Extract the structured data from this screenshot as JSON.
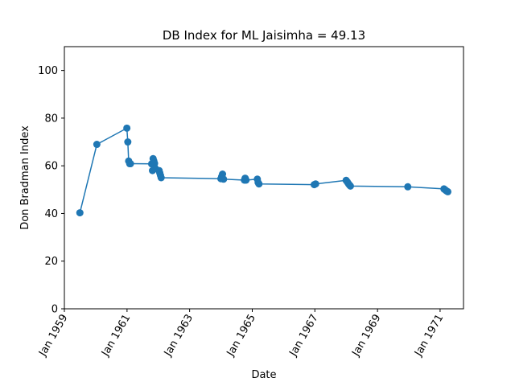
{
  "chart_data": {
    "type": "line",
    "title": "DB Index for ML Jaisimha = 49.13",
    "xlabel": "Date",
    "ylabel": "Don Bradman Index",
    "ylim": [
      0,
      110
    ],
    "xlim": [
      "1959-01-01",
      "1971-10-01"
    ],
    "yticks": [
      0,
      20,
      40,
      60,
      80,
      100
    ],
    "xticks": [
      "Jan 1959",
      "Jan 1961",
      "Jan 1963",
      "Jan 1965",
      "Jan 1967",
      "Jan 1969",
      "Jan 1971"
    ],
    "grid": false,
    "marker": "circle",
    "color": "#1f77b4",
    "series": [
      {
        "x": [
          "1959-07-01",
          "1960-01-15",
          "1960-12-30",
          "1961-01-10",
          "1961-01-20",
          "1961-02-01",
          "1961-02-10",
          "1961-10-15",
          "1961-10-25",
          "1961-11-01",
          "1961-11-10",
          "1961-11-18",
          "1961-11-25",
          "1962-01-10",
          "1962-01-18",
          "1962-01-26",
          "1962-02-03",
          "1964-01-01",
          "1964-01-10",
          "1964-01-20",
          "1964-02-01",
          "1964-10-01",
          "1964-10-10",
          "1964-10-20",
          "1965-03-01",
          "1965-03-10",
          "1965-03-20",
          "1966-12-25",
          "1967-01-10",
          "1968-01-01",
          "1968-01-15",
          "1968-01-28",
          "1968-02-10",
          "1968-02-20",
          "1969-12-20",
          "1971-02-15",
          "1971-03-01",
          "1971-03-15",
          "1971-04-01"
        ],
        "y": [
          40.3,
          69.0,
          75.8,
          70.0,
          62.0,
          60.9,
          60.9,
          60.8,
          58.0,
          63.0,
          62.0,
          61.0,
          59.0,
          58.0,
          57.0,
          56.0,
          55.0,
          54.6,
          55.5,
          56.5,
          54.4,
          54.0,
          54.8,
          54.0,
          54.4,
          53.0,
          52.4,
          52.1,
          52.4,
          53.9,
          53.2,
          52.5,
          51.9,
          51.5,
          51.2,
          50.3,
          49.9,
          49.5,
          49.13
        ]
      }
    ]
  }
}
